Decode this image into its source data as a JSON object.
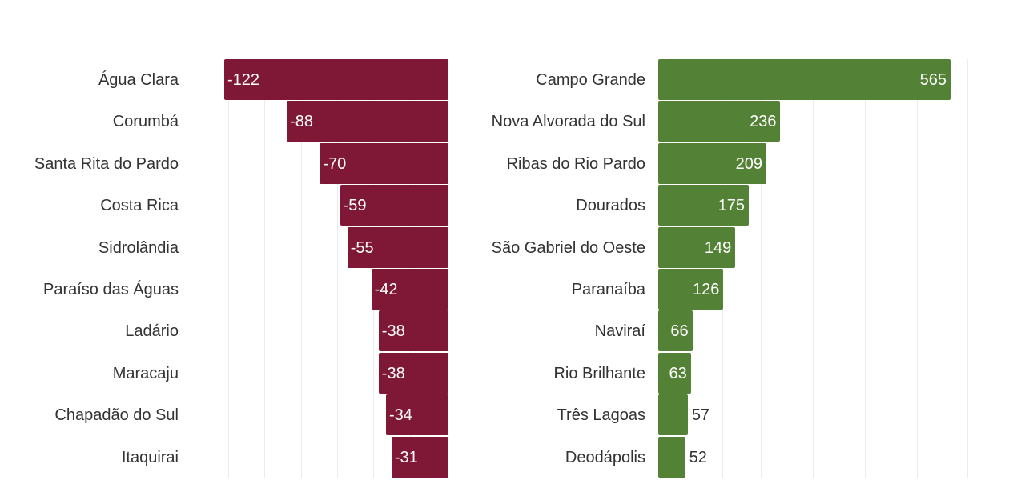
{
  "colors": {
    "negative": "#7f1737",
    "positive": "#538135",
    "label_text": "#333333",
    "grid": "#ececec"
  },
  "chart_data": [
    {
      "type": "bar",
      "orientation": "horizontal",
      "categories": [
        "Água Clara",
        "Corumbá",
        "Santa Rita do Pardo",
        "Costa Rica",
        "Sidrolândia",
        "Paraíso das Águas",
        "Ladário",
        "Maracaju",
        "Chapadão do Sul",
        "Itaquirai"
      ],
      "values": [
        -122,
        -88,
        -70,
        -59,
        -55,
        -42,
        -38,
        -38,
        -34,
        -31
      ],
      "data_labels": [
        "-122",
        "-88",
        "-70",
        "-59",
        "-55",
        "-42",
        "-38",
        "-38",
        "-34",
        "-31"
      ],
      "xlim": [
        -122,
        0
      ],
      "grid": true
    },
    {
      "type": "bar",
      "orientation": "horizontal",
      "categories": [
        "Campo Grande",
        "Nova Alvorada do Sul",
        "Ribas do Rio Pardo",
        "Dourados",
        "São Gabriel do Oeste",
        "Paranaíba",
        "Naviraí",
        "Rio Brilhante",
        "Três Lagoas",
        "Deodápolis"
      ],
      "values": [
        565,
        236,
        209,
        175,
        149,
        126,
        66,
        63,
        57,
        52
      ],
      "data_labels": [
        "565",
        "236",
        "209",
        "175",
        "149",
        "126",
        "66",
        "63",
        "57",
        "52"
      ],
      "xlim": [
        0,
        600
      ],
      "grid": true
    }
  ]
}
